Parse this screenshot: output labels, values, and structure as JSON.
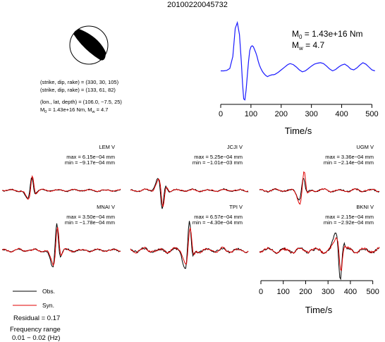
{
  "event_id": "20100220045732",
  "mechanism": {
    "line1": "(strike, dip, rake) = (330, 30, 105)",
    "line2": "(strike, dip, rake) = (133, 61, 82)",
    "line3": "(lon., lat, depth) = (106.0, −7.5, 25)",
    "line4_m0_prefix": "M",
    "line4_m0_sub": "0",
    "line4_m0_value": " = 1.43e+16 Nm, M",
    "line4_mw_sub": "w",
    "line4_mw_value": " = 4.7"
  },
  "stf": {
    "m0_label": "M",
    "m0_sub": "0",
    "m0_value": " = 1.43e+16 Nm",
    "mw_label": "M",
    "mw_sub": "w",
    "mw_value": " = 4.7",
    "xlabel": "Time/s"
  },
  "stations": [
    {
      "name": "LEM V",
      "max": "max = 6.15e−04 mm",
      "min": "min = −9.17e−04 mm"
    },
    {
      "name": "JCJI V",
      "max": "max = 5.25e−04 mm",
      "min": "min = −1.01e−03 mm"
    },
    {
      "name": "UGM V",
      "max": "max = 3.36e−04 mm",
      "min": "min = −2.14e−04 mm"
    },
    {
      "name": "MNAI V",
      "max": "max = 3.50e−04 mm",
      "min": "min = −1.78e−04 mm"
    },
    {
      "name": "TPI V",
      "max": "max = 6.57e−04 mm",
      "min": "min = −4.30e−04 mm"
    },
    {
      "name": "BKNI V",
      "max": "max = 2.15e−04 mm",
      "min": "min = −2.92e−04 mm"
    }
  ],
  "waveform_axis": {
    "xlabel": "Time/s"
  },
  "legend": {
    "obs": "Obs.",
    "syn": "Syn.",
    "obs_color": "#000000",
    "syn_color": "#e00000"
  },
  "residual": "Residual = 0.17",
  "frequency_label": "Frequency range",
  "frequency_value": "0.01 − 0.02 (Hz)",
  "chart_data": [
    {
      "type": "line",
      "name": "source time function",
      "color": "#1a1aff",
      "xlim": [
        0,
        520
      ],
      "ylim": [
        -0.62,
        1.0
      ],
      "xticks": [
        0,
        100,
        200,
        300,
        400,
        500
      ],
      "xlabel": "Time/s",
      "x": [
        0,
        10,
        20,
        30,
        40,
        48,
        55,
        62,
        68,
        72,
        76,
        80,
        84,
        88,
        92,
        96,
        100,
        104,
        108,
        112,
        116,
        120,
        124,
        128,
        132,
        136,
        140,
        145,
        150,
        155,
        160,
        165,
        170,
        175,
        180,
        190,
        200,
        210,
        220,
        225,
        230,
        240,
        250,
        260,
        270,
        280,
        290,
        300,
        310,
        320,
        330,
        340,
        350,
        360,
        370,
        380,
        390,
        400,
        410,
        420,
        430,
        440,
        450,
        460,
        470,
        480,
        490,
        500,
        510
      ],
      "y": [
        0,
        0,
        0.01,
        0.05,
        0.3,
        0.88,
        1.0,
        0.75,
        0.2,
        -0.25,
        -0.58,
        -0.6,
        -0.4,
        -0.1,
        0.2,
        0.42,
        0.5,
        0.52,
        0.5,
        0.44,
        0.38,
        0.3,
        0.2,
        0.12,
        0.06,
        0.01,
        -0.03,
        -0.07,
        -0.1,
        -0.12,
        -0.1,
        -0.09,
        -0.08,
        -0.08,
        -0.07,
        -0.03,
        0.02,
        0.07,
        0.12,
        0.14,
        0.15,
        0.13,
        0.08,
        0.02,
        -0.02,
        0.0,
        0.05,
        0.1,
        0.14,
        0.16,
        0.17,
        0.15,
        0.1,
        0.04,
        0.0,
        0.03,
        0.08,
        0.12,
        0.14,
        0.1,
        0.04,
        0.02,
        0.06,
        0.12,
        0.17,
        0.14,
        0.08,
        0.02,
        0.0
      ]
    },
    {
      "type": "line",
      "name": "waveform comparison",
      "xlim": [
        0,
        520
      ],
      "xticks": [
        0,
        100,
        200,
        300,
        400,
        500
      ],
      "xlabel": "Time/s",
      "panels": [
        {
          "station": "LEM V",
          "peak_t": 130,
          "peak_dir": 1,
          "obs_amp": 0.68,
          "syn_amp": 0.72,
          "noise": 0.1
        },
        {
          "station": "JCJI V",
          "peak_t": 140,
          "peak_dir": -1,
          "obs_amp": 0.95,
          "syn_amp": 0.85,
          "noise": 0.12
        },
        {
          "station": "UGM V",
          "peak_t": 190,
          "peak_dir": 1,
          "obs_amp": 0.62,
          "syn_amp": 0.92,
          "noise": 0.14
        },
        {
          "station": "MNAI V",
          "peak_t": 240,
          "peak_dir": 1,
          "obs_amp": 0.95,
          "syn_amp": 0.85,
          "noise": 0.1
        },
        {
          "station": "TPI V",
          "peak_t": 260,
          "peak_dir": 1,
          "obs_amp": 1.0,
          "syn_amp": 0.75,
          "noise": 0.16
        },
        {
          "station": "BKNI V",
          "peak_t": 350,
          "peak_dir": -1,
          "obs_amp": 1.0,
          "syn_amp": 0.7,
          "noise": 0.18
        }
      ]
    }
  ]
}
